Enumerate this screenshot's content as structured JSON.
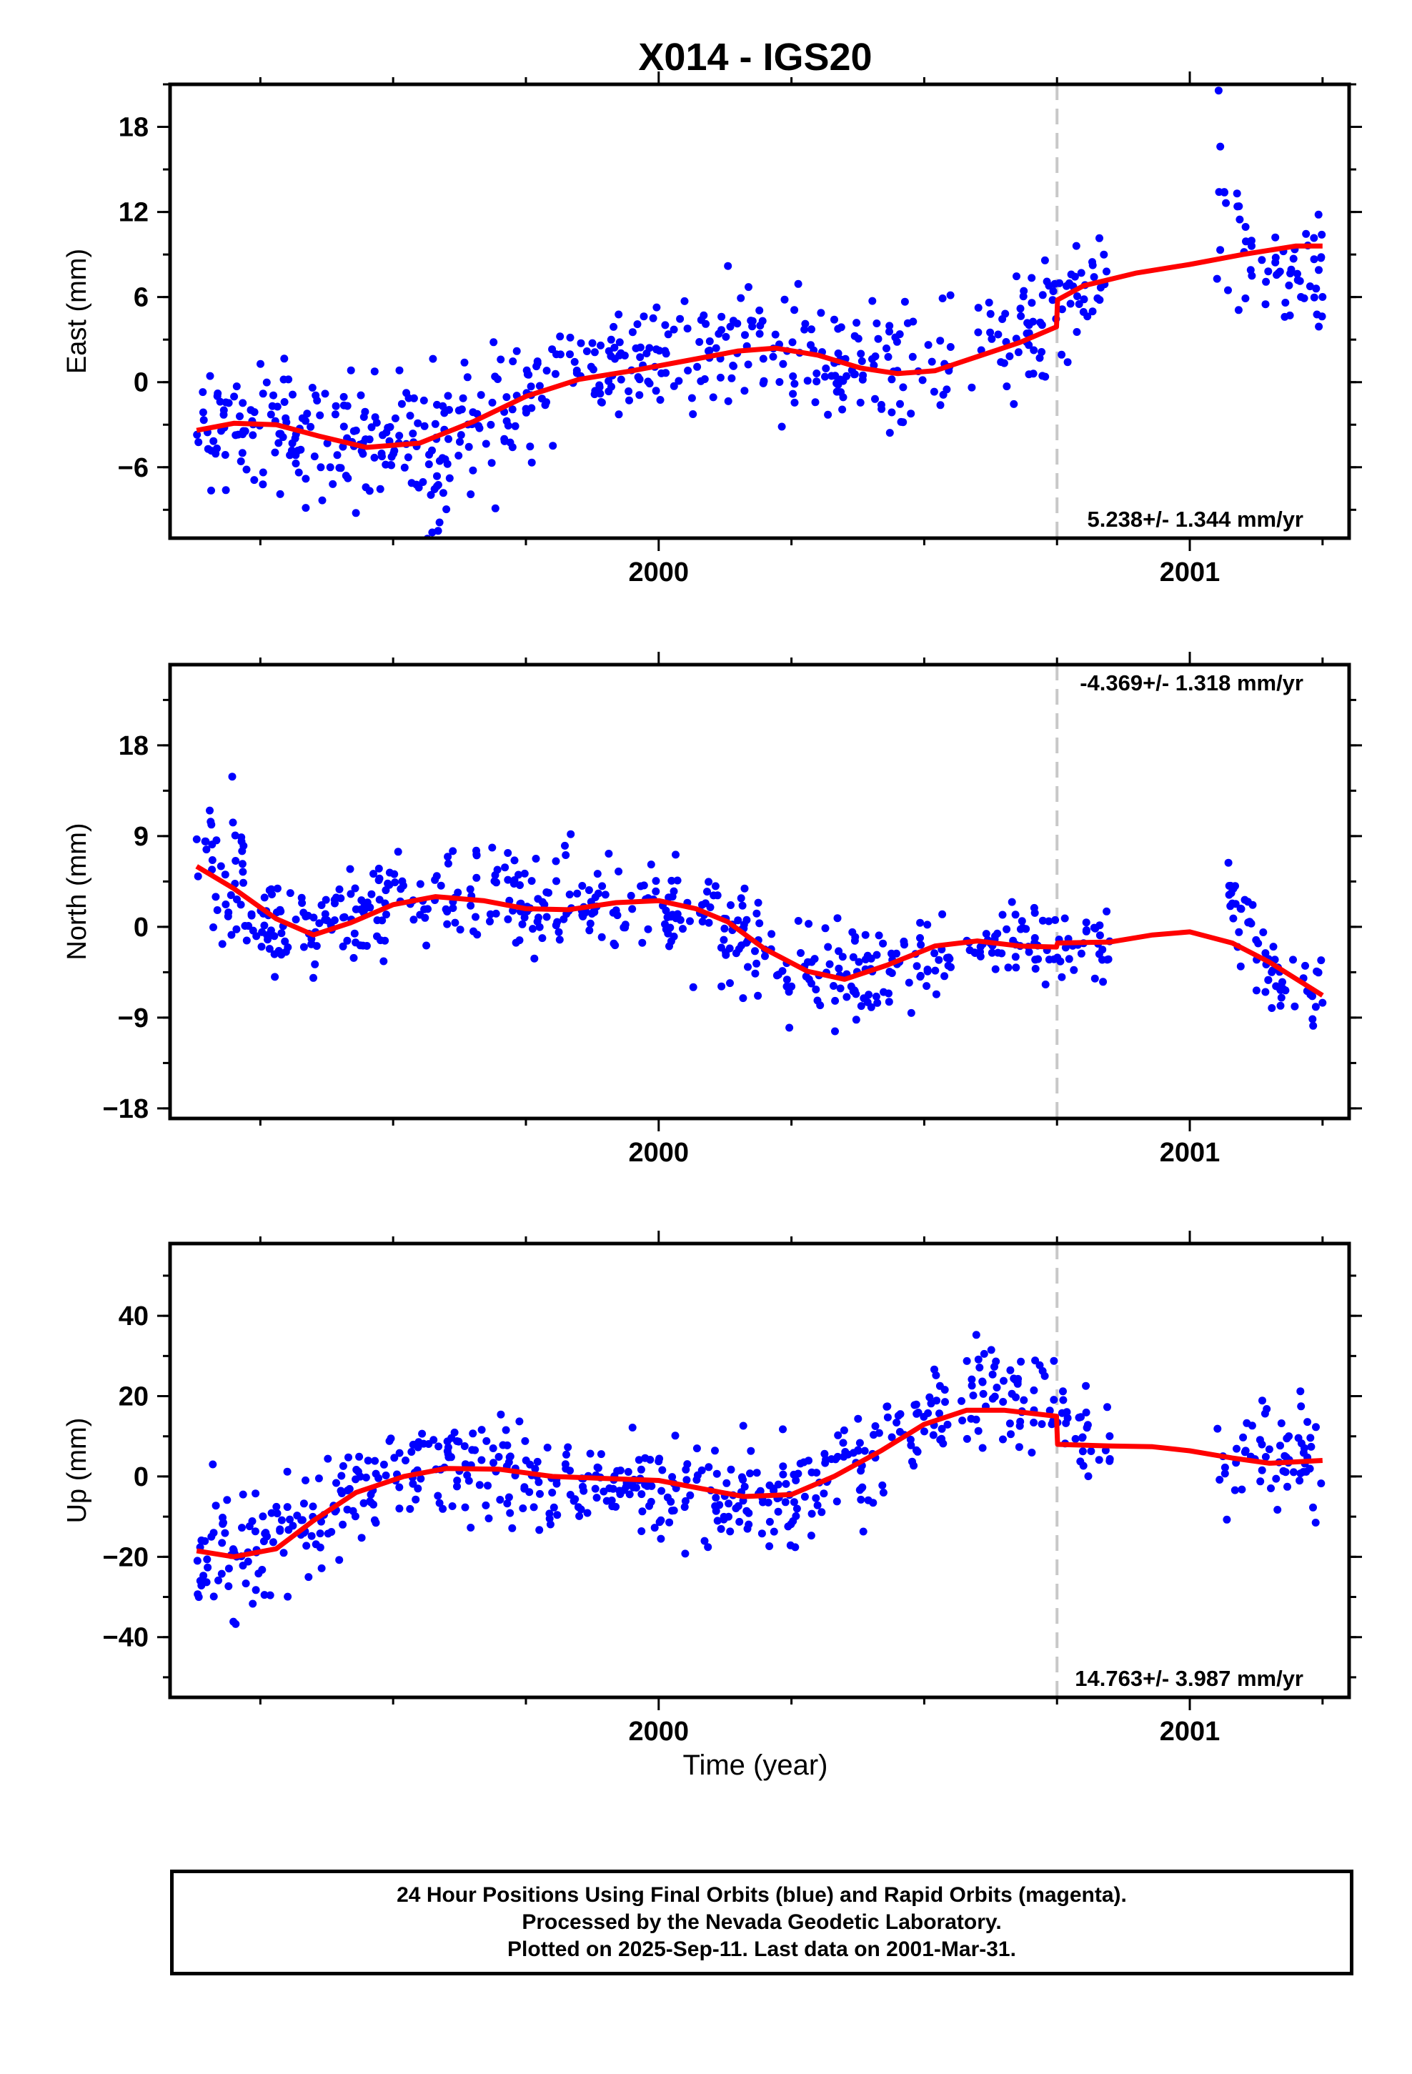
{
  "title": "X014 - IGS20",
  "xlabel": "Time (year)",
  "legend": {
    "lines": [
      "24 Hour Positions Using Final Orbits (blue) and Rapid Orbits (magenta).",
      "Processed by the Nevada Geodetic Laboratory.",
      "Plotted on 2025-Sep-11. Last data on 2001-Mar-31."
    ]
  },
  "colors": {
    "data": "#0000ff",
    "model": "#ff0000",
    "break_line": "#c8c8c8"
  },
  "chart_data": [
    {
      "type": "scatter",
      "name": "east",
      "ylabel": "East (mm)",
      "xlim": [
        1999.08,
        2001.3
      ],
      "ylim": [
        -11,
        21
      ],
      "yticks": [
        -6,
        0,
        6,
        12,
        18
      ],
      "xticks": [
        2000,
        2001
      ],
      "break_epoch": 2000.75,
      "rate": "5.238+/- 1.344 mm/yr",
      "rate_position": "bottom-right",
      "model": [
        [
          1999.13,
          -3.4
        ],
        [
          1999.2,
          -2.9
        ],
        [
          1999.28,
          -3.0
        ],
        [
          1999.36,
          -3.8
        ],
        [
          1999.45,
          -4.6
        ],
        [
          1999.55,
          -4.3
        ],
        [
          1999.65,
          -2.8
        ],
        [
          1999.75,
          -1.0
        ],
        [
          1999.85,
          0.2
        ],
        [
          1999.95,
          0.8
        ],
        [
          2000.05,
          1.5
        ],
        [
          2000.15,
          2.2
        ],
        [
          2000.22,
          2.4
        ],
        [
          2000.3,
          1.9
        ],
        [
          2000.38,
          1.0
        ],
        [
          2000.45,
          0.6
        ],
        [
          2000.52,
          0.8
        ],
        [
          2000.6,
          1.8
        ],
        [
          2000.68,
          2.8
        ],
        [
          2000.749,
          3.9
        ],
        [
          2000.751,
          5.8
        ],
        [
          2000.8,
          6.8
        ],
        [
          2000.9,
          7.7
        ],
        [
          2001.0,
          8.3
        ],
        [
          2001.1,
          9.0
        ],
        [
          2001.2,
          9.6
        ],
        [
          2001.25,
          9.6
        ]
      ],
      "gaps": [
        [
          2000.55,
          2000.58
        ],
        [
          2000.85,
          2001.05
        ]
      ],
      "points": [
        {
          "seg": [
            1999.13,
            1999.3
          ],
          "c": [
            -3.8,
            -2.6
          ],
          "s": 2.3,
          "n": 64
        },
        {
          "seg": [
            1999.3,
            1999.45
          ],
          "c": [
            -3.0,
            -4.4
          ],
          "s": 2.3,
          "n": 58
        },
        {
          "seg": [
            1999.45,
            1999.58
          ],
          "c": [
            -4.4,
            -5.6
          ],
          "s": 2.6,
          "n": 54
        },
        {
          "seg": [
            1999.58,
            1999.75
          ],
          "c": [
            -5.6,
            -0.8
          ],
          "s": 2.7,
          "n": 62
        },
        {
          "seg": [
            1999.75,
            1999.95
          ],
          "c": [
            -0.8,
            1.6
          ],
          "s": 2.2,
          "n": 66
        },
        {
          "seg": [
            1999.95,
            2000.2
          ],
          "c": [
            1.6,
            2.6
          ],
          "s": 2.1,
          "n": 80
        },
        {
          "seg": [
            2000.2,
            2000.42
          ],
          "c": [
            2.4,
            0.6
          ],
          "s": 2.3,
          "n": 70
        },
        {
          "seg": [
            2000.42,
            2000.55
          ],
          "c": [
            0.6,
            1.4
          ],
          "s": 2.2,
          "n": 36
        },
        {
          "seg": [
            2000.58,
            2000.75
          ],
          "c": [
            2.0,
            5.0
          ],
          "s": 2.2,
          "n": 50
        },
        {
          "seg": [
            2000.75,
            2000.85
          ],
          "c": [
            5.5,
            6.5
          ],
          "s": 1.9,
          "n": 30
        },
        {
          "seg": [
            2001.05,
            2001.12
          ],
          "c": [
            14.0,
            10.0
          ],
          "s": 3.0,
          "n": 22
        },
        {
          "seg": [
            2001.12,
            2001.25
          ],
          "c": [
            7.5,
            8.0
          ],
          "s": 1.9,
          "n": 40
        }
      ]
    },
    {
      "type": "scatter",
      "name": "north",
      "ylabel": "North (mm)",
      "xlim": [
        1999.08,
        2001.3
      ],
      "ylim": [
        -19,
        26
      ],
      "yticks": [
        -18,
        -9,
        0,
        9,
        18
      ],
      "xticks": [
        2000,
        2001
      ],
      "break_epoch": 2000.75,
      "rate": "-4.369+/- 1.318 mm/yr",
      "rate_position": "top-right",
      "model": [
        [
          1999.13,
          6.0
        ],
        [
          1999.2,
          3.8
        ],
        [
          1999.28,
          0.8
        ],
        [
          1999.35,
          -0.8
        ],
        [
          1999.42,
          0.4
        ],
        [
          1999.5,
          2.2
        ],
        [
          1999.58,
          3.0
        ],
        [
          1999.67,
          2.6
        ],
        [
          1999.75,
          1.8
        ],
        [
          1999.83,
          1.7
        ],
        [
          1999.92,
          2.4
        ],
        [
          2000.0,
          2.6
        ],
        [
          2000.07,
          1.8
        ],
        [
          2000.13,
          0.5
        ],
        [
          2000.2,
          -2.2
        ],
        [
          2000.28,
          -4.4
        ],
        [
          2000.35,
          -5.2
        ],
        [
          2000.43,
          -3.8
        ],
        [
          2000.52,
          -1.9
        ],
        [
          2000.6,
          -1.4
        ],
        [
          2000.68,
          -1.9
        ],
        [
          2000.749,
          -2.0
        ],
        [
          2000.751,
          -1.6
        ],
        [
          2000.85,
          -1.5
        ],
        [
          2000.93,
          -0.8
        ],
        [
          2001.0,
          -0.5
        ],
        [
          2001.08,
          -1.6
        ],
        [
          2001.15,
          -3.5
        ],
        [
          2001.25,
          -6.8
        ]
      ],
      "gaps": [
        [
          2000.55,
          2000.58
        ],
        [
          2000.85,
          2001.06
        ]
      ],
      "points": [
        {
          "seg": [
            1999.13,
            1999.22
          ],
          "c": [
            7.2,
            5.0
          ],
          "s": 3.0,
          "n": 38
        },
        {
          "seg": [
            1999.22,
            1999.35
          ],
          "c": [
            1.2,
            -0.5
          ],
          "s": 2.4,
          "n": 50
        },
        {
          "seg": [
            1999.35,
            1999.6
          ],
          "c": [
            0.5,
            3.3
          ],
          "s": 2.4,
          "n": 80
        },
        {
          "seg": [
            1999.6,
            1999.85
          ],
          "c": [
            3.0,
            1.8
          ],
          "s": 2.4,
          "n": 80
        },
        {
          "seg": [
            1999.85,
            2000.05
          ],
          "c": [
            2.0,
            2.5
          ],
          "s": 2.4,
          "n": 66
        },
        {
          "seg": [
            2000.05,
            2000.22
          ],
          "c": [
            1.2,
            -2.4
          ],
          "s": 2.9,
          "n": 56
        },
        {
          "seg": [
            2000.22,
            2000.42
          ],
          "c": [
            -4.2,
            -4.6
          ],
          "s": 2.6,
          "n": 66
        },
        {
          "seg": [
            2000.42,
            2000.55
          ],
          "c": [
            -4.2,
            -2.4
          ],
          "s": 2.2,
          "n": 38
        },
        {
          "seg": [
            2000.58,
            2000.75
          ],
          "c": [
            -1.2,
            -1.8
          ],
          "s": 2.0,
          "n": 52
        },
        {
          "seg": [
            2000.75,
            2000.85
          ],
          "c": [
            -2.0,
            -1.8
          ],
          "s": 1.8,
          "n": 30
        },
        {
          "seg": [
            2001.06,
            2001.12
          ],
          "c": [
            3.0,
            0.0
          ],
          "s": 2.6,
          "n": 22
        },
        {
          "seg": [
            2001.12,
            2001.25
          ],
          "c": [
            -3.0,
            -6.5
          ],
          "s": 2.0,
          "n": 40
        }
      ]
    },
    {
      "type": "scatter",
      "name": "up",
      "ylabel": "Up (mm)",
      "xlim": [
        1999.08,
        2001.3
      ],
      "ylim": [
        -55,
        58
      ],
      "yticks": [
        -40,
        -20,
        0,
        20,
        40
      ],
      "xticks": [
        2000,
        2001
      ],
      "break_epoch": 2000.75,
      "rate": "14.763+/- 3.987 mm/yr",
      "rate_position": "bottom-right",
      "model": [
        [
          1999.13,
          -18.5
        ],
        [
          1999.2,
          -20.0
        ],
        [
          1999.28,
          -18.0
        ],
        [
          1999.35,
          -11.0
        ],
        [
          1999.43,
          -4.0
        ],
        [
          1999.52,
          0.0
        ],
        [
          1999.6,
          2.0
        ],
        [
          1999.7,
          1.8
        ],
        [
          1999.8,
          0.0
        ],
        [
          1999.9,
          -0.5
        ],
        [
          2000.0,
          -1.0
        ],
        [
          2000.08,
          -3.0
        ],
        [
          2000.16,
          -5.0
        ],
        [
          2000.25,
          -4.5
        ],
        [
          2000.33,
          0.0
        ],
        [
          2000.42,
          6.5
        ],
        [
          2000.5,
          13.0
        ],
        [
          2000.58,
          16.5
        ],
        [
          2000.65,
          16.5
        ],
        [
          2000.749,
          15.0
        ],
        [
          2000.751,
          8.0
        ],
        [
          2000.85,
          7.6
        ],
        [
          2000.93,
          7.4
        ],
        [
          2001.0,
          6.4
        ],
        [
          2001.08,
          4.6
        ],
        [
          2001.15,
          3.3
        ],
        [
          2001.25,
          4.0
        ]
      ],
      "gaps": [
        [
          2000.55,
          2000.57
        ],
        [
          2000.85,
          2001.05
        ]
      ],
      "points": [
        {
          "seg": [
            1999.13,
            1999.3
          ],
          "c": [
            -21,
            -17
          ],
          "s": 7.5,
          "n": 66
        },
        {
          "seg": [
            1999.3,
            1999.5
          ],
          "c": [
            -14,
            0
          ],
          "s": 6.5,
          "n": 70
        },
        {
          "seg": [
            1999.5,
            1999.75
          ],
          "c": [
            2,
            3
          ],
          "s": 6.0,
          "n": 86
        },
        {
          "seg": [
            1999.75,
            2000.0
          ],
          "c": [
            -1,
            -1
          ],
          "s": 6.0,
          "n": 86
        },
        {
          "seg": [
            2000.0,
            2000.22
          ],
          "c": [
            -2,
            -5
          ],
          "s": 6.5,
          "n": 76
        },
        {
          "seg": [
            2000.22,
            2000.42
          ],
          "c": [
            -5,
            6
          ],
          "s": 6.5,
          "n": 70
        },
        {
          "seg": [
            2000.42,
            2000.55
          ],
          "c": [
            8,
            16
          ],
          "s": 6.5,
          "n": 40
        },
        {
          "seg": [
            2000.57,
            2000.75
          ],
          "c": [
            20,
            18
          ],
          "s": 7.0,
          "n": 60
        },
        {
          "seg": [
            2000.75,
            2000.85
          ],
          "c": [
            14,
            8
          ],
          "s": 5.0,
          "n": 28
        },
        {
          "seg": [
            2001.05,
            2001.25
          ],
          "c": [
            6,
            3
          ],
          "s": 7.5,
          "n": 62
        }
      ]
    }
  ]
}
